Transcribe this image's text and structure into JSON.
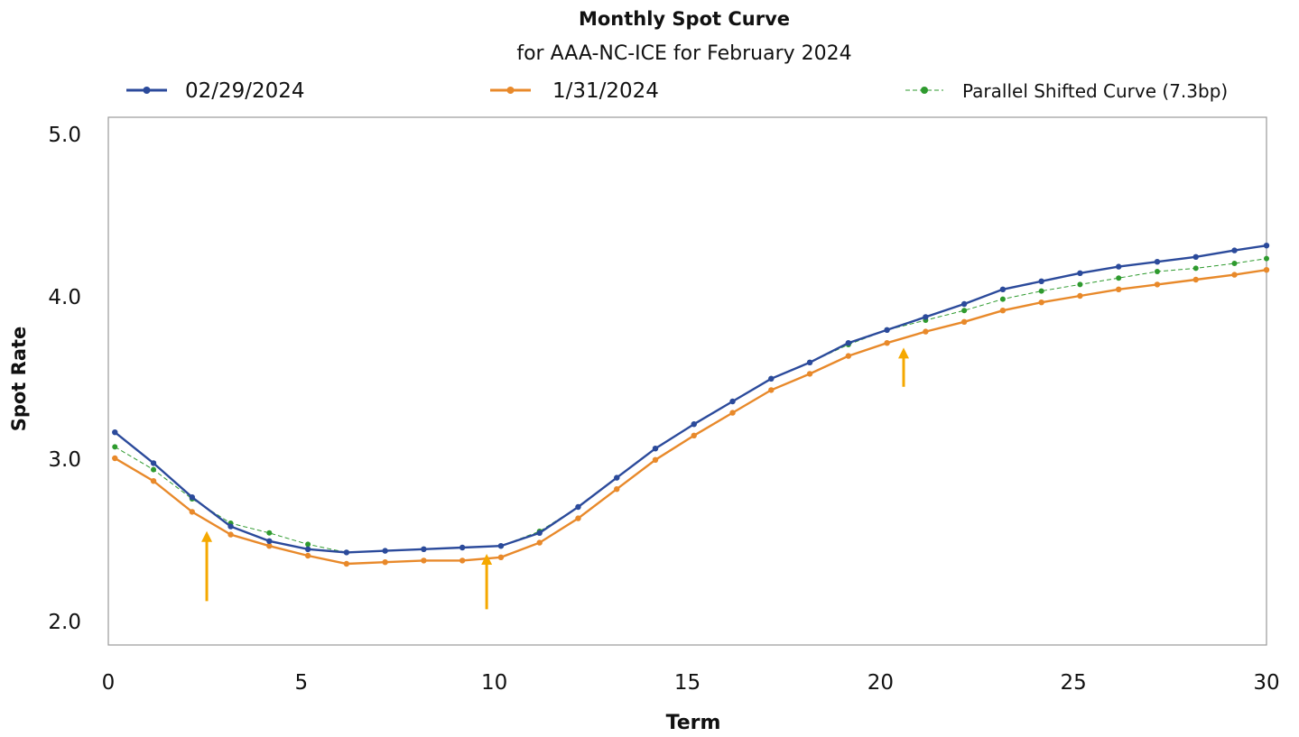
{
  "chart_data": {
    "type": "line",
    "title": "Monthly Spot Curve",
    "subtitle": "for AAA-NC-ICE for February 2024",
    "xlabel": "Term",
    "ylabel": "Spot Rate",
    "xlim": [
      0,
      30
    ],
    "ylim": [
      1.85,
      5.1
    ],
    "x_ticks": [
      "0",
      "5",
      "10",
      "15",
      "20",
      "25",
      "30"
    ],
    "y_ticks": [
      "2.0",
      "3.0",
      "4.0",
      "5.0"
    ],
    "grid": false,
    "legend_position": "top",
    "x": [
      0.17,
      1.17,
      2.17,
      3.17,
      4.17,
      5.17,
      6.17,
      7.17,
      8.17,
      9.17,
      10.17,
      11.17,
      12.17,
      13.17,
      14.17,
      15.17,
      16.17,
      17.17,
      18.17,
      19.17,
      20.17,
      21.17,
      22.17,
      23.17,
      24.17,
      25.17,
      26.17,
      27.17,
      28.17,
      29.17,
      30.0
    ],
    "series": [
      {
        "name": "02/29/2024",
        "color": "#2b4a9b",
        "style": "solid",
        "values": [
          3.16,
          2.97,
          2.76,
          2.58,
          2.49,
          2.44,
          2.42,
          2.43,
          2.44,
          2.45,
          2.46,
          2.54,
          2.7,
          2.88,
          3.06,
          3.21,
          3.35,
          3.49,
          3.59,
          3.71,
          3.79,
          3.87,
          3.95,
          4.04,
          4.09,
          4.14,
          4.18,
          4.21,
          4.24,
          4.28,
          4.31
        ]
      },
      {
        "name": "1/31/2024",
        "color": "#e8892a",
        "style": "solid",
        "values": [
          3.0,
          2.86,
          2.67,
          2.53,
          2.46,
          2.4,
          2.35,
          2.36,
          2.37,
          2.37,
          2.39,
          2.48,
          2.63,
          2.81,
          2.99,
          3.14,
          3.28,
          3.42,
          3.52,
          3.63,
          3.71,
          3.78,
          3.84,
          3.91,
          3.96,
          4.0,
          4.04,
          4.07,
          4.1,
          4.13,
          4.16
        ]
      },
      {
        "name": "Parallel Shifted Curve (7.3bp)",
        "color": "#2e9a2e",
        "style": "dashed",
        "values": [
          3.07,
          2.93,
          2.75,
          2.6,
          2.54,
          2.47,
          2.42,
          2.43,
          2.44,
          2.45,
          2.46,
          2.55,
          2.7,
          2.88,
          3.06,
          3.21,
          3.35,
          3.49,
          3.59,
          3.7,
          3.79,
          3.85,
          3.91,
          3.98,
          4.03,
          4.07,
          4.11,
          4.15,
          4.17,
          4.2,
          4.23
        ]
      }
    ],
    "annotations": [
      {
        "type": "arrow",
        "color": "#f5a800",
        "x": 2.55,
        "y_from": 2.12,
        "y_to": 2.54
      },
      {
        "type": "arrow",
        "color": "#f5a800",
        "x": 9.8,
        "y_from": 2.07,
        "y_to": 2.4
      },
      {
        "type": "arrow",
        "color": "#f5a800",
        "x": 20.6,
        "y_from": 3.44,
        "y_to": 3.67
      }
    ]
  }
}
